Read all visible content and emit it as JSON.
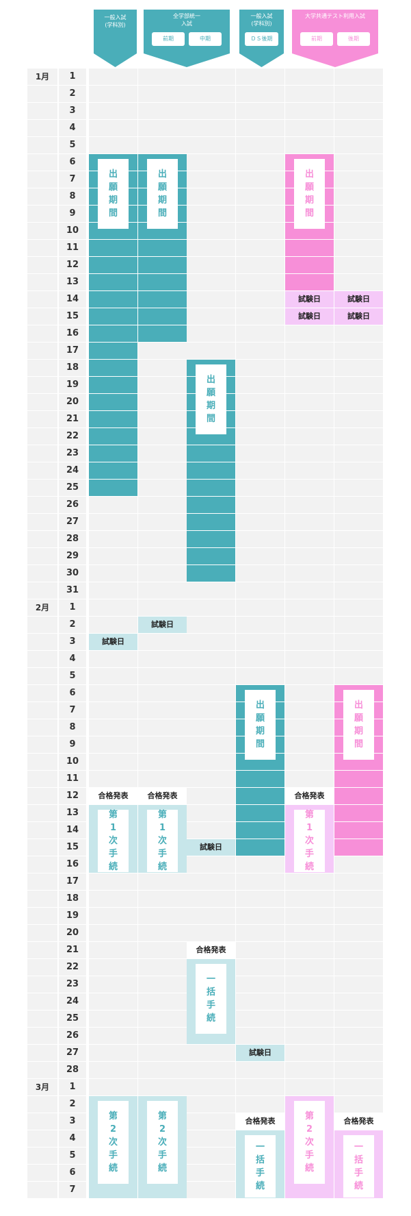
{
  "headers": [
    {
      "title": "一般入試\n(学科別)",
      "pills": [],
      "color": "#4aaeb9",
      "pill_text_color": "#4aaeb9"
    },
    {
      "title": "全学部統一\n入試",
      "pills": [
        "前期",
        "中期"
      ],
      "color": "#4aaeb9",
      "pill_text_color": "#4aaeb9"
    },
    {
      "title": "一般入試\n(学科別)",
      "pills": [
        "ＤＳ後期"
      ],
      "color": "#4aaeb9",
      "pill_text_color": "#4aaeb9"
    },
    {
      "title": "大学共通テスト利用入試",
      "pills": [
        "前期",
        "後期"
      ],
      "color": "#f78fd8",
      "pill_text_color": "#f78fd8"
    }
  ],
  "months": [
    {
      "label": "1月",
      "days": 31
    },
    {
      "label": "2月",
      "days": 28
    },
    {
      "label": "3月",
      "days": 7
    }
  ],
  "colors": {
    "teal": "#4aaeb9",
    "teal_light": "#c7e6ea",
    "pink": "#f78fd8",
    "pink_light": "#f5c9f8",
    "row_bg": "#f2f2f2"
  },
  "labels": {
    "application_period": "出願期間",
    "exam_day": "試験日",
    "pass_announcement": "合格発表",
    "first_procedure": "第1次手続",
    "second_procedure": "第2次手続",
    "lump_procedure": "一括手続"
  },
  "events": [
    {
      "col": 0,
      "from": 6,
      "to": 25,
      "type": "fill",
      "color": "teal",
      "text": "出願期間"
    },
    {
      "col": 1,
      "from": 6,
      "to": 16,
      "type": "fill",
      "color": "teal",
      "text": "出願期間"
    },
    {
      "col": 4,
      "from": 6,
      "to": 13,
      "type": "fill",
      "color": "pink",
      "text": "出願期間"
    },
    {
      "col": 4,
      "from": 14,
      "to": 14,
      "type": "tag",
      "color": "pink_light",
      "text": "試験日"
    },
    {
      "col": 5,
      "from": 14,
      "to": 14,
      "type": "tag",
      "color": "pink_light",
      "text": "試験日"
    },
    {
      "col": 4,
      "from": 15,
      "to": 15,
      "type": "tag",
      "color": "pink_light",
      "text": "試験日"
    },
    {
      "col": 5,
      "from": 15,
      "to": 15,
      "type": "tag",
      "color": "pink_light",
      "text": "試験日"
    },
    {
      "col": 2,
      "from": 18,
      "to": 30,
      "type": "fill",
      "color": "teal",
      "text": "出願期間"
    },
    {
      "col": 1,
      "from": 33,
      "to": 33,
      "type": "tag",
      "color": "teal_light",
      "text": "試験日"
    },
    {
      "col": 0,
      "from": 34,
      "to": 34,
      "type": "tag",
      "color": "teal_light",
      "text": "試験日"
    },
    {
      "col": 3,
      "from": 37,
      "to": 46,
      "type": "fill",
      "color": "teal",
      "text": "出願期間"
    },
    {
      "col": 5,
      "from": 37,
      "to": 46,
      "type": "fill",
      "color": "pink",
      "text": "出願期間"
    },
    {
      "col": 0,
      "from": 43,
      "to": 43,
      "type": "tag",
      "color": "white",
      "text": "合格発表"
    },
    {
      "col": 1,
      "from": 43,
      "to": 43,
      "type": "tag",
      "color": "white",
      "text": "合格発表"
    },
    {
      "col": 4,
      "from": 43,
      "to": 43,
      "type": "tag",
      "color": "white",
      "text": "合格発表"
    },
    {
      "col": 0,
      "from": 44,
      "to": 47,
      "type": "light",
      "color": "teal_light",
      "text": "第1次手続"
    },
    {
      "col": 1,
      "from": 44,
      "to": 47,
      "type": "light",
      "color": "teal_light",
      "text": "第1次手続"
    },
    {
      "col": 4,
      "from": 44,
      "to": 47,
      "type": "light",
      "color": "pink_light",
      "text": "第1次手続"
    },
    {
      "col": 2,
      "from": 46,
      "to": 46,
      "type": "tag",
      "color": "teal_light",
      "text": "試験日"
    },
    {
      "col": 2,
      "from": 52,
      "to": 52,
      "type": "tag",
      "color": "white",
      "text": "合格発表"
    },
    {
      "col": 2,
      "from": 53,
      "to": 57,
      "type": "light",
      "color": "teal_light",
      "text": "一括手続"
    },
    {
      "col": 3,
      "from": 58,
      "to": 58,
      "type": "tag",
      "color": "teal_light",
      "text": "試験日"
    },
    {
      "col": 0,
      "from": 61,
      "to": 66,
      "type": "light",
      "color": "teal_light",
      "text": "第2次手続"
    },
    {
      "col": 1,
      "from": 61,
      "to": 66,
      "type": "light",
      "color": "teal_light",
      "text": "第2次手続"
    },
    {
      "col": 4,
      "from": 61,
      "to": 66,
      "type": "light",
      "color": "pink_light",
      "text": "第2次手続"
    },
    {
      "col": 3,
      "from": 62,
      "to": 62,
      "type": "tag",
      "color": "white",
      "text": "合格発表"
    },
    {
      "col": 5,
      "from": 62,
      "to": 62,
      "type": "tag",
      "color": "white",
      "text": "合格発表"
    },
    {
      "col": 3,
      "from": 63,
      "to": 66,
      "type": "light",
      "color": "teal_light",
      "text": "一括手続"
    },
    {
      "col": 5,
      "from": 63,
      "to": 66,
      "type": "light",
      "color": "pink_light",
      "text": "一括手続"
    }
  ]
}
